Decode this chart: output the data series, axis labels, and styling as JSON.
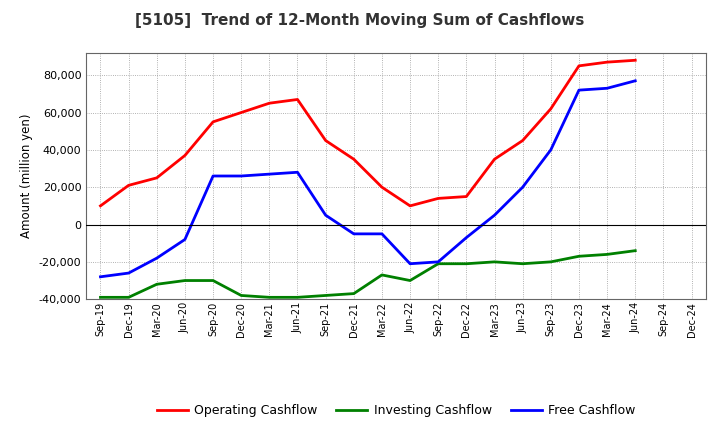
{
  "title": "[5105]  Trend of 12-Month Moving Sum of Cashflows",
  "ylabel": "Amount (million yen)",
  "ylim": [
    -40000,
    92000
  ],
  "yticks": [
    -40000,
    -20000,
    0,
    20000,
    40000,
    60000,
    80000
  ],
  "background_color": "#ffffff",
  "plot_bg_color": "#ffffff",
  "grid_color": "#999999",
  "x_labels": [
    "Sep-19",
    "Dec-19",
    "Mar-20",
    "Jun-20",
    "Sep-20",
    "Dec-20",
    "Mar-21",
    "Jun-21",
    "Sep-21",
    "Dec-21",
    "Mar-22",
    "Jun-22",
    "Sep-22",
    "Dec-22",
    "Mar-23",
    "Jun-23",
    "Sep-23",
    "Dec-23",
    "Mar-24",
    "Jun-24",
    "Sep-24",
    "Dec-24"
  ],
  "operating_cashflow": [
    10000,
    21000,
    25000,
    37000,
    55000,
    60000,
    65000,
    67000,
    45000,
    35000,
    20000,
    10000,
    14000,
    15000,
    35000,
    45000,
    62000,
    85000,
    87000,
    88000,
    null,
    null
  ],
  "investing_cashflow": [
    -39000,
    -39000,
    -32000,
    -30000,
    -30000,
    -38000,
    -39000,
    -39000,
    -38000,
    -37000,
    -27000,
    -30000,
    -21000,
    -21000,
    -20000,
    -21000,
    -20000,
    -17000,
    -16000,
    -14000,
    null,
    null
  ],
  "free_cashflow": [
    -28000,
    -26000,
    -18000,
    -8000,
    26000,
    26000,
    27000,
    28000,
    5000,
    -5000,
    -5000,
    -21000,
    -20000,
    -7000,
    5000,
    20000,
    40000,
    72000,
    73000,
    77000,
    null,
    null
  ],
  "operating_color": "#ff0000",
  "investing_color": "#008000",
  "free_color": "#0000ff",
  "line_width": 2.0,
  "legend_labels": [
    "Operating Cashflow",
    "Investing Cashflow",
    "Free Cashflow"
  ]
}
